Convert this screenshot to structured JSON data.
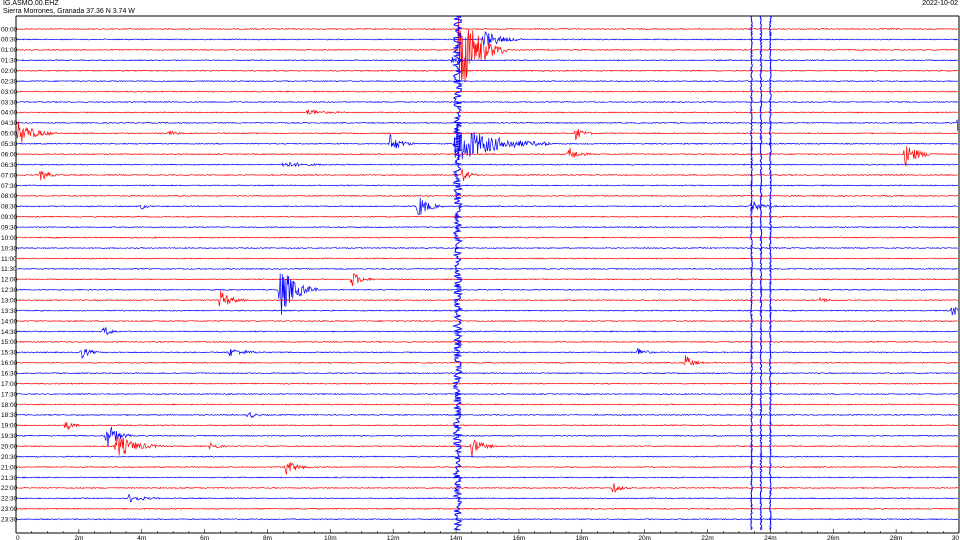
{
  "header": {
    "station": "IG.ASMO.00.EHZ",
    "location": "Sierra Morrones, Granada  37.36 N 3.74 W",
    "date": "2022-10-02"
  },
  "colors": {
    "trace_a": "#ff0000",
    "trace_b": "#0000ff",
    "axis": "#000000"
  },
  "chart_data": {
    "type": "line",
    "row_labels": [
      "00:00",
      "00:30",
      "01:00",
      "01:30",
      "02:00",
      "02:30",
      "03:00",
      "03:30",
      "04:00",
      "04:30",
      "05:00",
      "05:30",
      "06:00",
      "06:30",
      "07:00",
      "07:30",
      "08:00",
      "08:30",
      "09:00",
      "09:30",
      "10:00",
      "10:30",
      "11:00",
      "11:30",
      "12:00",
      "12:30",
      "13:00",
      "13:30",
      "14:00",
      "14:30",
      "15:00",
      "15:30",
      "16:00",
      "16:30",
      "17:00",
      "17:30",
      "18:00",
      "18:30",
      "19:00",
      "19:30",
      "20:00",
      "20:30",
      "21:00",
      "21:30",
      "22:00",
      "22:30",
      "23:00",
      "23:30"
    ],
    "row_colors": [
      "red",
      "blue",
      "red",
      "blue",
      "red",
      "blue",
      "red",
      "blue",
      "red",
      "blue",
      "red",
      "blue",
      "red",
      "blue",
      "red",
      "blue",
      "red",
      "blue",
      "red",
      "blue",
      "red",
      "blue",
      "red",
      "blue",
      "red",
      "blue",
      "red",
      "blue",
      "red",
      "blue",
      "red",
      "blue",
      "red",
      "blue",
      "red",
      "blue",
      "red",
      "blue",
      "red",
      "blue",
      "red",
      "blue",
      "red",
      "blue",
      "red",
      "blue",
      "red",
      "blue"
    ],
    "x_tick_labels": [
      "0",
      "2m",
      "4m",
      "6m",
      "8m",
      "10m",
      "12m",
      "14m",
      "16m",
      "18m",
      "20m",
      "22m",
      "24m",
      "26m",
      "28m",
      "30"
    ],
    "x_range_minutes": [
      0,
      30
    ],
    "events": [
      {
        "row": 1,
        "minute": 14.9,
        "amplitude": 10,
        "duration": 1.2
      },
      {
        "row": 2,
        "minute": 14.1,
        "amplitude": 50,
        "duration": 1.5
      },
      {
        "row": 3,
        "minute": 13.9,
        "amplitude": 4,
        "duration": 0.3
      },
      {
        "row": 8,
        "minute": 9.3,
        "amplitude": 3,
        "duration": 1.2
      },
      {
        "row": 9,
        "minute": 30,
        "amplitude": 20,
        "duration": 0.5
      },
      {
        "row": 10,
        "minute": 0,
        "amplitude": 14,
        "duration": 1.3
      },
      {
        "row": 10,
        "minute": 4.9,
        "amplitude": 3,
        "duration": 0.4
      },
      {
        "row": 10,
        "minute": 17.8,
        "amplitude": 6,
        "duration": 0.6
      },
      {
        "row": 11,
        "minute": 11.9,
        "amplitude": 10,
        "duration": 0.8
      },
      {
        "row": 11,
        "minute": 14.0,
        "amplitude": 22,
        "duration": 3.0
      },
      {
        "row": 12,
        "minute": 17.6,
        "amplitude": 7,
        "duration": 0.7
      },
      {
        "row": 12,
        "minute": 28.3,
        "amplitude": 12,
        "duration": 1.0
      },
      {
        "row": 13,
        "minute": 8.5,
        "amplitude": 3,
        "duration": 1.5
      },
      {
        "row": 14,
        "minute": 0.8,
        "amplitude": 6,
        "duration": 0.6
      },
      {
        "row": 14,
        "minute": 14.2,
        "amplitude": 7,
        "duration": 0.6
      },
      {
        "row": 17,
        "minute": 4.0,
        "amplitude": 3,
        "duration": 0.4
      },
      {
        "row": 17,
        "minute": 12.8,
        "amplitude": 12,
        "duration": 0.8
      },
      {
        "row": 17,
        "minute": 23.4,
        "amplitude": 6,
        "duration": 0.8
      },
      {
        "row": 24,
        "minute": 10.7,
        "amplitude": 8,
        "duration": 0.7
      },
      {
        "row": 25,
        "minute": 8.4,
        "amplitude": 28,
        "duration": 1.2
      },
      {
        "row": 26,
        "minute": 6.5,
        "amplitude": 10,
        "duration": 0.8
      },
      {
        "row": 26,
        "minute": 25.6,
        "amplitude": 4,
        "duration": 0.4
      },
      {
        "row": 27,
        "minute": 29.8,
        "amplitude": 6,
        "duration": 0.5
      },
      {
        "row": 29,
        "minute": 2.8,
        "amplitude": 6,
        "duration": 0.5
      },
      {
        "row": 31,
        "minute": 2.1,
        "amplitude": 6,
        "duration": 0.6
      },
      {
        "row": 31,
        "minute": 6.8,
        "amplitude": 4,
        "duration": 1.2
      },
      {
        "row": 31,
        "minute": 19.8,
        "amplitude": 5,
        "duration": 0.6
      },
      {
        "row": 32,
        "minute": 21.3,
        "amplitude": 8,
        "duration": 0.6
      },
      {
        "row": 37,
        "minute": 7.4,
        "amplitude": 4,
        "duration": 0.5
      },
      {
        "row": 38,
        "minute": 1.6,
        "amplitude": 5,
        "duration": 0.5
      },
      {
        "row": 39,
        "minute": 2.9,
        "amplitude": 14,
        "duration": 0.8
      },
      {
        "row": 40,
        "minute": 3.2,
        "amplitude": 12,
        "duration": 1.5
      },
      {
        "row": 40,
        "minute": 6.2,
        "amplitude": 5,
        "duration": 0.5
      },
      {
        "row": 40,
        "minute": 14.5,
        "amplitude": 10,
        "duration": 0.8
      },
      {
        "row": 42,
        "minute": 8.6,
        "amplitude": 8,
        "duration": 0.8
      },
      {
        "row": 44,
        "minute": 19.0,
        "amplitude": 5,
        "duration": 0.6
      },
      {
        "row": 45,
        "minute": 3.6,
        "amplitude": 4,
        "duration": 1.0
      }
    ]
  }
}
